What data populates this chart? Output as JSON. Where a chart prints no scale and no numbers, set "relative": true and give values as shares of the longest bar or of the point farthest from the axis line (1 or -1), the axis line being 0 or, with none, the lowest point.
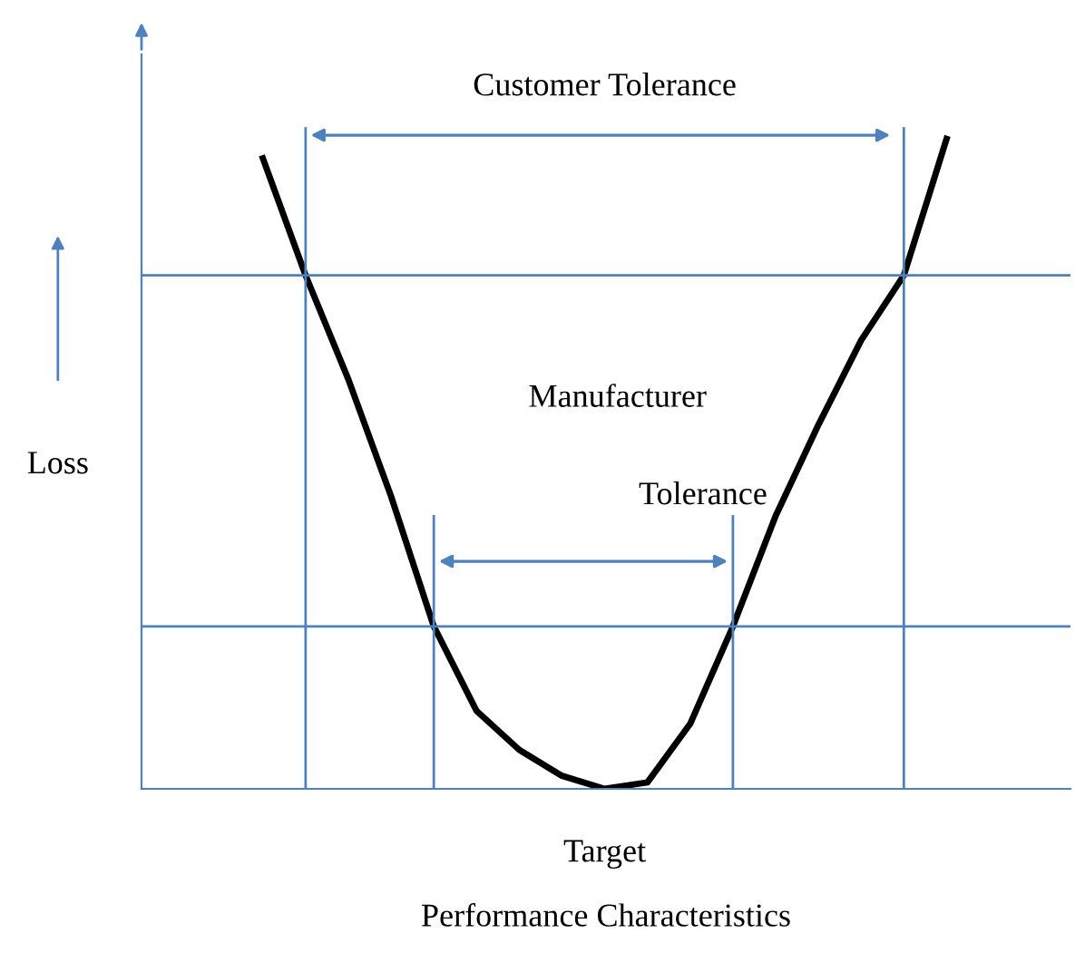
{
  "chart_data": {
    "type": "line",
    "relative": true,
    "xlabel": "Performance Characteristics",
    "ylabel": "Loss",
    "categories": [
      null,
      null,
      null,
      null,
      null,
      null,
      null,
      null,
      null,
      null,
      null,
      null,
      null,
      null,
      null,
      null,
      null
    ],
    "series": [
      {
        "color": "#000000",
        "values": [
          0.97,
          0.79,
          0.63,
          0.45,
          0.25,
          0.12,
          0.06,
          0.02,
          0,
          0.01,
          0.1,
          0.25,
          0.42,
          0.56,
          0.69,
          0.79,
          1.0
        ]
      }
    ],
    "ref_lines": [
      {
        "axis": "y",
        "value": 0.79,
        "color": "#4f81bd"
      },
      {
        "axis": "y",
        "value": 0.25,
        "color": "#4f81bd"
      }
    ],
    "annotations": [
      "Customer Tolerance",
      "Manufacturer",
      "Tolerance",
      "Target"
    ]
  }
}
